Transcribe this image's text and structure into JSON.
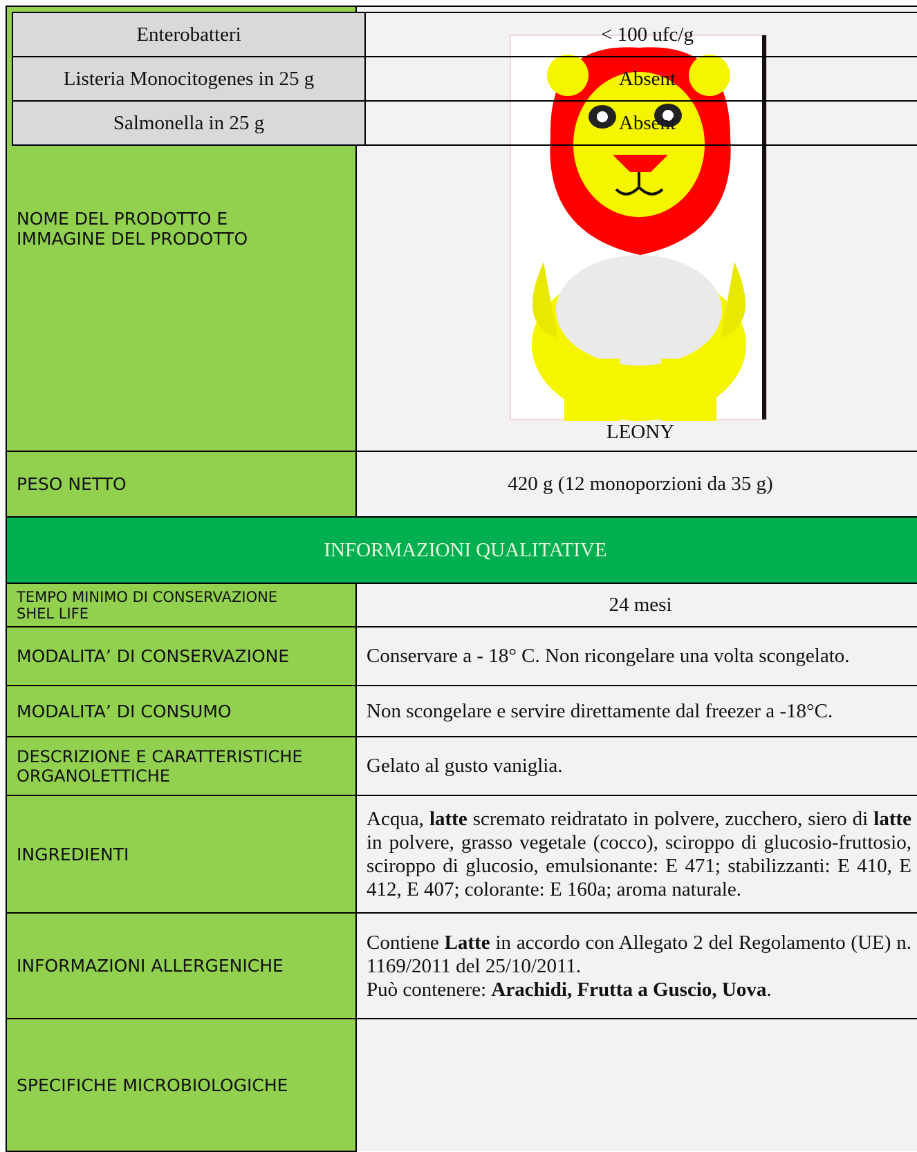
{
  "rows": [
    {
      "label": "NOME DEL PRODOTTO E IMMAGINE DEL PRODOTTO",
      "product_name": "LEONY"
    },
    {
      "label": "PESO NETTO",
      "value": "420 g (12 monoporzioni da 35 g)"
    },
    {
      "section": "INFORMAZIONI QUALITATIVE"
    },
    {
      "label_lines": [
        "TEMPO MINIMO DI CONSERVAZIONE",
        "SHEL LIFE"
      ],
      "value": "24 mesi"
    },
    {
      "label": "MODALITA’ DI CONSERVAZIONE",
      "value": "Conservare a - 18° C. Non ricongelare una volta scongelato."
    },
    {
      "label": "MODALITA’ DI CONSUMO",
      "value": "Non scongelare e servire direttamente dal freezer a -18°C."
    },
    {
      "label_lines": [
        "DESCRIZIONE E CARATTERISTICHE",
        "ORGANOLETTICHE"
      ],
      "value": "Gelato al gusto vaniglia."
    },
    {
      "label": "INGREDIENTI",
      "segments": [
        "Acqua, ",
        "latte",
        " scremato reidratato in polvere, zucchero, siero di ",
        "latte",
        " in polvere, grasso vegetale (cocco), sciroppo di glucosio-fruttosio, sciroppo di glucosio, emulsionante: E 471; stabilizzanti: E 410, E 412, E 407; colorante: E 160a; aroma naturale."
      ]
    },
    {
      "label": "INFORMAZIONI ALLERGENICHE",
      "line1": [
        "Contiene ",
        "Latte",
        " in accordo con Allegato 2 del Regolamento (UE) n. 1169/2011 del 25/10/2011."
      ],
      "line2": [
        "Può contenere: ",
        "Arachidi, Frutta a Guscio, Uova",
        "."
      ]
    },
    {
      "label": "SPECIFICHE MICROBIOLOGICHE",
      "specs": [
        [
          "Enterobatteri",
          "< 100 ufc/g"
        ],
        [
          "Listeria Monocitogenes in 25 g",
          "Absent"
        ],
        [
          "Salmonella in 25 g",
          "Absent"
        ]
      ]
    }
  ]
}
